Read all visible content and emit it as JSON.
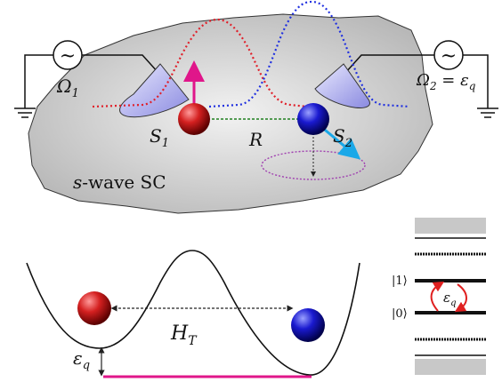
{
  "top_panel": {
    "source_left_label": "Ω",
    "source_left_sub": "1",
    "source_right_label": "Ω",
    "source_right_sub": "2",
    "source_right_eq": " = ε",
    "source_right_eq_sub": "q",
    "spin1_label": "S",
    "spin1_sub": "1",
    "spin2_label": "S",
    "spin2_sub": "2",
    "distance_label": "R",
    "substrate_label_italic": "s",
    "substrate_label_rest": "-wave SC",
    "ac_symbol": "~"
  },
  "bottom_panel": {
    "tunneling_label": "H",
    "tunneling_sub": "T",
    "energy_label": "ε",
    "energy_sub": "q"
  },
  "level_diagram": {
    "state_one": "|1⟩",
    "state_zero": "|0⟩",
    "gap_label": "ε",
    "gap_sub": "q"
  },
  "colors": {
    "spin1": "#d42020",
    "spin2": "#1a1ad0",
    "field_left": "#e0202a",
    "field_right": "#2030e0",
    "magenta": "#e0168a",
    "cyan": "#1aa8e8",
    "bond": "#208020",
    "precession": "#a040b0"
  }
}
